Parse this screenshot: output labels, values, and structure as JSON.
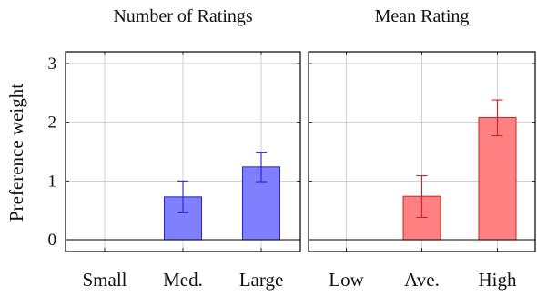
{
  "ylabel": "Preference weight",
  "yticks": [
    "0",
    "1",
    "2",
    "3"
  ],
  "chart_data": [
    {
      "type": "bar",
      "title": "Number of Ratings",
      "categories": [
        "Small",
        "Med.",
        "Large"
      ],
      "values": [
        0.0,
        0.73,
        1.24
      ],
      "err_low": [
        0.0,
        0.46,
        0.99
      ],
      "err_high": [
        0.0,
        1.0,
        1.49
      ],
      "ylim": [
        -0.2,
        3.2
      ],
      "grid": true,
      "color": "#8080ff",
      "edge_color": "#2323d8"
    },
    {
      "type": "bar",
      "title": "Mean Rating",
      "categories": [
        "Low",
        "Ave.",
        "High"
      ],
      "values": [
        0.0,
        0.74,
        2.08
      ],
      "err_low": [
        0.0,
        0.38,
        1.77
      ],
      "err_high": [
        0.0,
        1.09,
        2.38
      ],
      "ylim": [
        -0.2,
        3.2
      ],
      "grid": true,
      "color": "#ff8080",
      "edge_color": "#d62020"
    }
  ]
}
